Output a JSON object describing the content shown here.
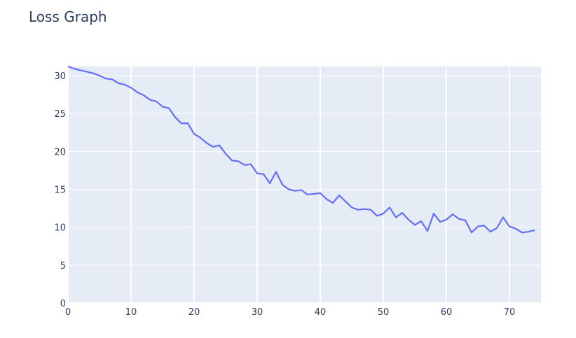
{
  "chart_data": {
    "type": "line",
    "title": "Loss Graph",
    "xlabel": "",
    "ylabel": "",
    "xlim": [
      0,
      75
    ],
    "ylim": [
      0,
      31.2
    ],
    "xticks": [
      0,
      10,
      20,
      30,
      40,
      50,
      60,
      70
    ],
    "yticks": [
      0,
      5,
      10,
      15,
      20,
      25,
      30
    ],
    "grid": true,
    "series": [
      {
        "color": "#636efa",
        "x": [
          0,
          1,
          2,
          3,
          4,
          5,
          6,
          7,
          8,
          9,
          10,
          11,
          12,
          13,
          14,
          15,
          16,
          17,
          18,
          19,
          20,
          21,
          22,
          23,
          24,
          25,
          26,
          27,
          28,
          29,
          30,
          31,
          32,
          33,
          34,
          35,
          36,
          37,
          38,
          39,
          40,
          41,
          42,
          43,
          44,
          45,
          46,
          47,
          48,
          49,
          50,
          51,
          52,
          53,
          54,
          55,
          56,
          57,
          58,
          59,
          60,
          61,
          62,
          63,
          64,
          65,
          66,
          67,
          68,
          69,
          70,
          71,
          72,
          73,
          74
        ],
        "values": [
          31.2,
          30.9,
          30.7,
          30.5,
          30.3,
          30.0,
          29.6,
          29.5,
          29.0,
          28.8,
          28.4,
          27.8,
          27.4,
          26.8,
          26.6,
          25.9,
          25.7,
          24.5,
          23.7,
          23.7,
          22.3,
          21.8,
          21.1,
          20.6,
          20.8,
          19.7,
          18.8,
          18.7,
          18.2,
          18.3,
          17.1,
          17.0,
          15.8,
          17.3,
          15.6,
          15.0,
          14.8,
          14.9,
          14.3,
          14.4,
          14.5,
          13.7,
          13.2,
          14.2,
          13.4,
          12.6,
          12.3,
          12.4,
          12.3,
          11.5,
          11.8,
          12.6,
          11.3,
          11.9,
          11.0,
          10.3,
          10.8,
          9.5,
          11.8,
          10.7,
          11.0,
          11.7,
          11.1,
          10.9,
          9.3,
          10.1,
          10.2,
          9.4,
          9.9,
          11.3,
          10.1,
          9.8,
          9.3,
          9.4,
          9.6
        ]
      }
    ]
  },
  "colors": {
    "plot_bg": "#e5ecf6",
    "grid": "#ffffff",
    "text": "#2a3f5f",
    "line": "#636efa"
  }
}
